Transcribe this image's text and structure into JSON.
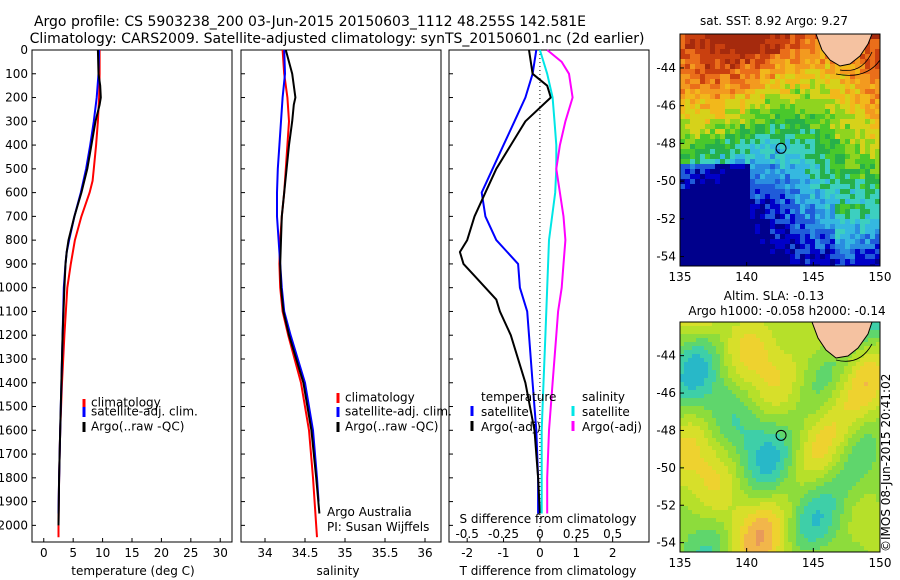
{
  "header": {
    "line1": "Argo profile: CS 5903238_200 03-Jun-2015 20150603_1112 48.255S 142.581E",
    "line2": "Climatology: CARS2009. Satellite-adjusted climatology: synTS_20150601.nc (2d earlier)"
  },
  "colors": {
    "climatology": "#ff0000",
    "satellite": "#0000ff",
    "argo": "#000000",
    "sal_satellite": "#00e6e6",
    "sal_argo": "#ff00ff"
  },
  "depth_axis": {
    "ticks": [
      "0",
      "100",
      "200",
      "300",
      "400",
      "500",
      "600",
      "700",
      "800",
      "900",
      "1000",
      "1100",
      "1200",
      "1300",
      "1400",
      "1500",
      "1600",
      "1700",
      "1800",
      "1900",
      "2000"
    ],
    "ylim": [
      0,
      2070
    ]
  },
  "chart_data": [
    {
      "type": "line",
      "id": "temperature",
      "xlabel": "temperature (deg C)",
      "xlim": [
        -2,
        32
      ],
      "xticks": [
        "0",
        "5",
        "10",
        "15",
        "20",
        "25",
        "30"
      ],
      "legend": [
        "climatology",
        "satellite-adj. clim.",
        "Argo(..raw -QC)"
      ],
      "series": [
        {
          "name": "climatology",
          "depth": [
            0,
            100,
            200,
            300,
            400,
            500,
            550,
            600,
            700,
            800,
            900,
            1000,
            1200,
            1400,
            1600,
            1800,
            2000,
            2050
          ],
          "values": [
            9.5,
            9.5,
            9.4,
            9.2,
            8.9,
            8.5,
            8.3,
            7.8,
            6.4,
            5.3,
            4.6,
            4.0,
            3.5,
            3.1,
            2.8,
            2.6,
            2.5,
            2.5
          ]
        },
        {
          "name": "satellite-adj. clim.",
          "depth": [
            0,
            100,
            200,
            300,
            400,
            500,
            600,
            700,
            800,
            850,
            900,
            1000,
            1200,
            1400,
            1600,
            1800,
            1950
          ],
          "values": [
            9.4,
            9.3,
            9.0,
            8.5,
            7.9,
            7.2,
            6.3,
            5.2,
            4.3,
            3.9,
            3.7,
            3.4,
            3.2,
            3.0,
            2.8,
            2.6,
            2.5
          ]
        },
        {
          "name": "Argo(..raw -QC)",
          "depth": [
            0,
            100,
            150,
            200,
            230,
            300,
            400,
            500,
            600,
            700,
            800,
            850,
            900,
            1000,
            1200,
            1400,
            1600,
            1800,
            2000
          ],
          "values": [
            9.2,
            9.3,
            9.6,
            9.7,
            9.5,
            8.8,
            8.1,
            7.4,
            6.4,
            5.2,
            4.2,
            3.9,
            3.7,
            3.5,
            3.2,
            3.0,
            2.8,
            2.6,
            2.5
          ]
        }
      ]
    },
    {
      "type": "line",
      "id": "salinity",
      "xlabel": "salinity",
      "xlim": [
        33.7,
        36.2
      ],
      "xticks": [
        "34",
        "34.5",
        "35",
        "35.5",
        "36"
      ],
      "legend": [
        "climatology",
        "satellite-adj. clim.",
        "Argo(..raw -QC)"
      ],
      "annotation": [
        "Argo Australia",
        "PI: Susan Wijffels"
      ],
      "series": [
        {
          "name": "climatology",
          "depth": [
            0,
            100,
            200,
            300,
            400,
            500,
            600,
            700,
            800,
            900,
            1000,
            1100,
            1200,
            1400,
            1600,
            1800,
            2000,
            2050
          ],
          "values": [
            34.22,
            34.24,
            34.28,
            34.3,
            34.28,
            34.26,
            34.24,
            34.21,
            34.19,
            34.18,
            34.19,
            34.22,
            34.29,
            34.45,
            34.55,
            34.6,
            34.64,
            34.65
          ]
        },
        {
          "name": "satellite-adj. clim.",
          "depth": [
            0,
            100,
            200,
            300,
            400,
            500,
            600,
            700,
            800,
            900,
            1000,
            1100,
            1200,
            1400,
            1600,
            1800,
            1900
          ],
          "values": [
            34.24,
            34.25,
            34.22,
            34.2,
            34.18,
            34.16,
            34.15,
            34.15,
            34.17,
            34.19,
            34.21,
            34.24,
            34.32,
            34.5,
            34.6,
            34.65,
            34.67
          ]
        },
        {
          "name": "Argo(..raw -QC)",
          "depth": [
            0,
            50,
            100,
            200,
            230,
            300,
            400,
            500,
            600,
            700,
            800,
            900,
            1000,
            1100,
            1200,
            1400,
            1600,
            1800,
            1950
          ],
          "values": [
            34.26,
            34.3,
            34.34,
            34.38,
            34.36,
            34.34,
            34.3,
            34.27,
            34.24,
            34.21,
            34.2,
            34.19,
            34.2,
            34.23,
            34.3,
            34.48,
            34.58,
            34.64,
            34.68
          ]
        }
      ]
    },
    {
      "type": "line",
      "id": "differences",
      "xlabel": "T difference from climatology",
      "xlabel_top": "S difference from climatology",
      "xlim": [
        -2.5,
        3
      ],
      "xticks": [
        "-2",
        "-1",
        "0",
        "1",
        "2"
      ],
      "xticks_top": [
        "-0.5",
        "-0.25",
        "0",
        "0.25",
        "0.5"
      ],
      "legend_left_title": "temperature",
      "legend_right_title": "salinity",
      "legend_left": [
        "satellite",
        "Argo(-adj)"
      ],
      "legend_right": [
        "satellite",
        "Argo(-adj)"
      ],
      "series": [
        {
          "name": "T satellite",
          "depth": [
            0,
            100,
            200,
            300,
            400,
            500,
            600,
            700,
            800,
            850,
            900,
            1000,
            1100,
            1200,
            1400,
            1600,
            1800,
            1950
          ],
          "values": [
            -0.1,
            -0.2,
            -0.4,
            -0.7,
            -1.0,
            -1.3,
            -1.6,
            -1.5,
            -1.2,
            -0.9,
            -0.6,
            -0.55,
            -0.35,
            -0.3,
            -0.2,
            -0.1,
            -0.05,
            -0.05
          ]
        },
        {
          "name": "T Argo(-adj)",
          "depth": [
            0,
            100,
            150,
            200,
            300,
            400,
            500,
            600,
            700,
            800,
            850,
            900,
            950,
            1000,
            1050,
            1100,
            1200,
            1400,
            1600,
            1800,
            1950
          ],
          "values": [
            -0.3,
            -0.2,
            0.2,
            0.3,
            -0.4,
            -0.8,
            -1.2,
            -1.5,
            -1.8,
            -2.0,
            -2.2,
            -2.1,
            -1.8,
            -1.5,
            -1.2,
            -1.1,
            -0.8,
            -0.4,
            -0.15,
            -0.05,
            0.0
          ]
        },
        {
          "name": "S satellite",
          "depth": [
            0,
            100,
            200,
            300,
            400,
            500,
            600,
            800,
            1000,
            1200,
            1400,
            1600,
            1800,
            1950
          ],
          "values": [
            0.0,
            0.2,
            0.35,
            0.4,
            0.45,
            0.45,
            0.42,
            0.25,
            0.2,
            0.15,
            0.1,
            0.05,
            0.05,
            0.05
          ]
        },
        {
          "name": "S Argo(-adj)",
          "depth": [
            0,
            50,
            100,
            200,
            300,
            400,
            500,
            600,
            700,
            800,
            900,
            1000,
            1100,
            1200,
            1400,
            1600,
            1800,
            1950
          ],
          "values": [
            0.2,
            0.6,
            0.8,
            0.9,
            0.7,
            0.55,
            0.45,
            0.55,
            0.65,
            0.7,
            0.65,
            0.6,
            0.5,
            0.45,
            0.35,
            0.25,
            0.2,
            0.2
          ]
        }
      ]
    },
    {
      "type": "heatmap",
      "id": "sst-map",
      "title": "sat. SST: 8.92  Argo: 9.27",
      "xlim": [
        135,
        150
      ],
      "ylim": [
        -54.5,
        -42.2
      ],
      "xticks": [
        "135",
        "140",
        "145",
        "150"
      ],
      "yticks": [
        "-44",
        "-46",
        "-48",
        "-50",
        "-52",
        "-54"
      ],
      "argo_position": {
        "lon": 142.58,
        "lat": -48.26
      }
    },
    {
      "type": "heatmap",
      "id": "sla-map",
      "title": "Altim. SLA: -0.13",
      "subtitle": "Argo h1000: -0.058 h2000: -0.14",
      "xlim": [
        135,
        150
      ],
      "ylim": [
        -54.5,
        -42.2
      ],
      "xticks": [
        "135",
        "140",
        "145",
        "150"
      ],
      "yticks": [
        "-44",
        "-46",
        "-48",
        "-50",
        "-52",
        "-54"
      ],
      "argo_position": {
        "lon": 142.58,
        "lat": -48.26
      }
    }
  ],
  "side_label": "©IMOS 08-Jun-2015 20:41:02"
}
